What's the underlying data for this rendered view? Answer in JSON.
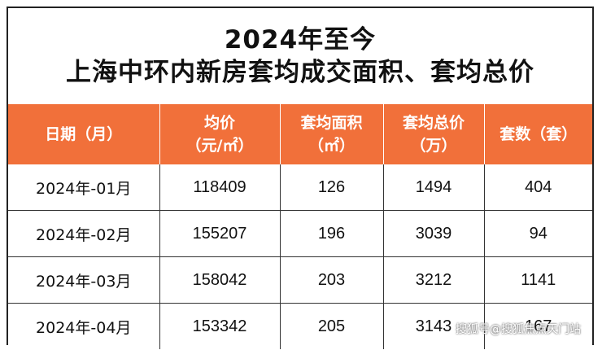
{
  "title": {
    "line1": "2024年至今",
    "line2": "上海中环内新房套均成交面积、套均总价"
  },
  "table": {
    "headers": [
      {
        "line1": "日期（月）",
        "line2": ""
      },
      {
        "line1": "均价",
        "line2": "（元/㎡）"
      },
      {
        "line1": "套均面积",
        "line2": "（㎡）"
      },
      {
        "line1": "套均总价",
        "line2": "（万）"
      },
      {
        "line1": "套数（套）",
        "line2": ""
      }
    ],
    "rows": [
      {
        "month": "2024年-01月",
        "avg_price": "118409",
        "avg_area": "126",
        "avg_total": "1494",
        "units": "404"
      },
      {
        "month": "2024年-02月",
        "avg_price": "155207",
        "avg_area": "196",
        "avg_total": "3039",
        "units": "94"
      },
      {
        "month": "2024年-03月",
        "avg_price": "158042",
        "avg_area": "203",
        "avg_total": "3212",
        "units": "1141"
      },
      {
        "month": "2024年-04月",
        "avg_price": "153342",
        "avg_area": "205",
        "avg_total": "3143",
        "units": "167"
      }
    ]
  },
  "watermark": "搜狐号@搜狐焦点天门站",
  "colors": {
    "header_bg": "#f1703a",
    "header_text": "#ffffff",
    "border": "#333333"
  }
}
